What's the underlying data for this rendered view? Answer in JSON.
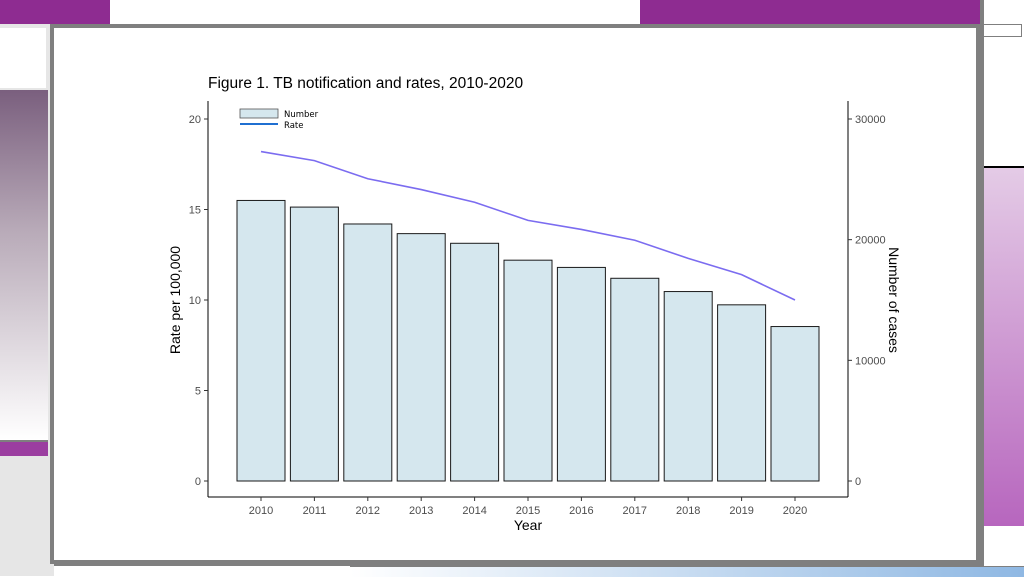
{
  "theme": {
    "accent_purple": "#8e2c91",
    "frame_gray": "#7f7f7f",
    "bar_fill": "#d5e7ee",
    "bar_stroke": "#1a1a1a",
    "line_color": "#7b6cf0",
    "legend_line_color": "#1f6fd1"
  },
  "chart_data": {
    "type": "bar",
    "title": "Figure 1. TB notification and rates, 2010-2020",
    "xlabel": "Year",
    "ylabel": "Rate per 100,000",
    "y2label": "Number of cases",
    "categories": [
      "2010",
      "2011",
      "2012",
      "2013",
      "2014",
      "2015",
      "2016",
      "2017",
      "2018",
      "2019",
      "2020"
    ],
    "ylim": [
      0,
      20
    ],
    "yticks": [
      "0",
      "5",
      "10",
      "15",
      "20"
    ],
    "y2lim": [
      0,
      30000
    ],
    "y2ticks": [
      "0",
      "10000",
      "20000",
      "30000"
    ],
    "series": [
      {
        "name": "Number",
        "type": "bar",
        "axis": "right",
        "values": [
          23250,
          22700,
          21300,
          20500,
          19700,
          18300,
          17700,
          16800,
          15700,
          14600,
          12800
        ]
      },
      {
        "name": "Rate",
        "type": "line",
        "axis": "left",
        "values": [
          18.2,
          17.7,
          16.7,
          16.1,
          15.4,
          14.4,
          13.9,
          13.3,
          12.3,
          11.4,
          10.0
        ]
      }
    ],
    "legend": [
      "Number",
      "Rate"
    ],
    "legend_position": "top-left",
    "grid": false
  }
}
